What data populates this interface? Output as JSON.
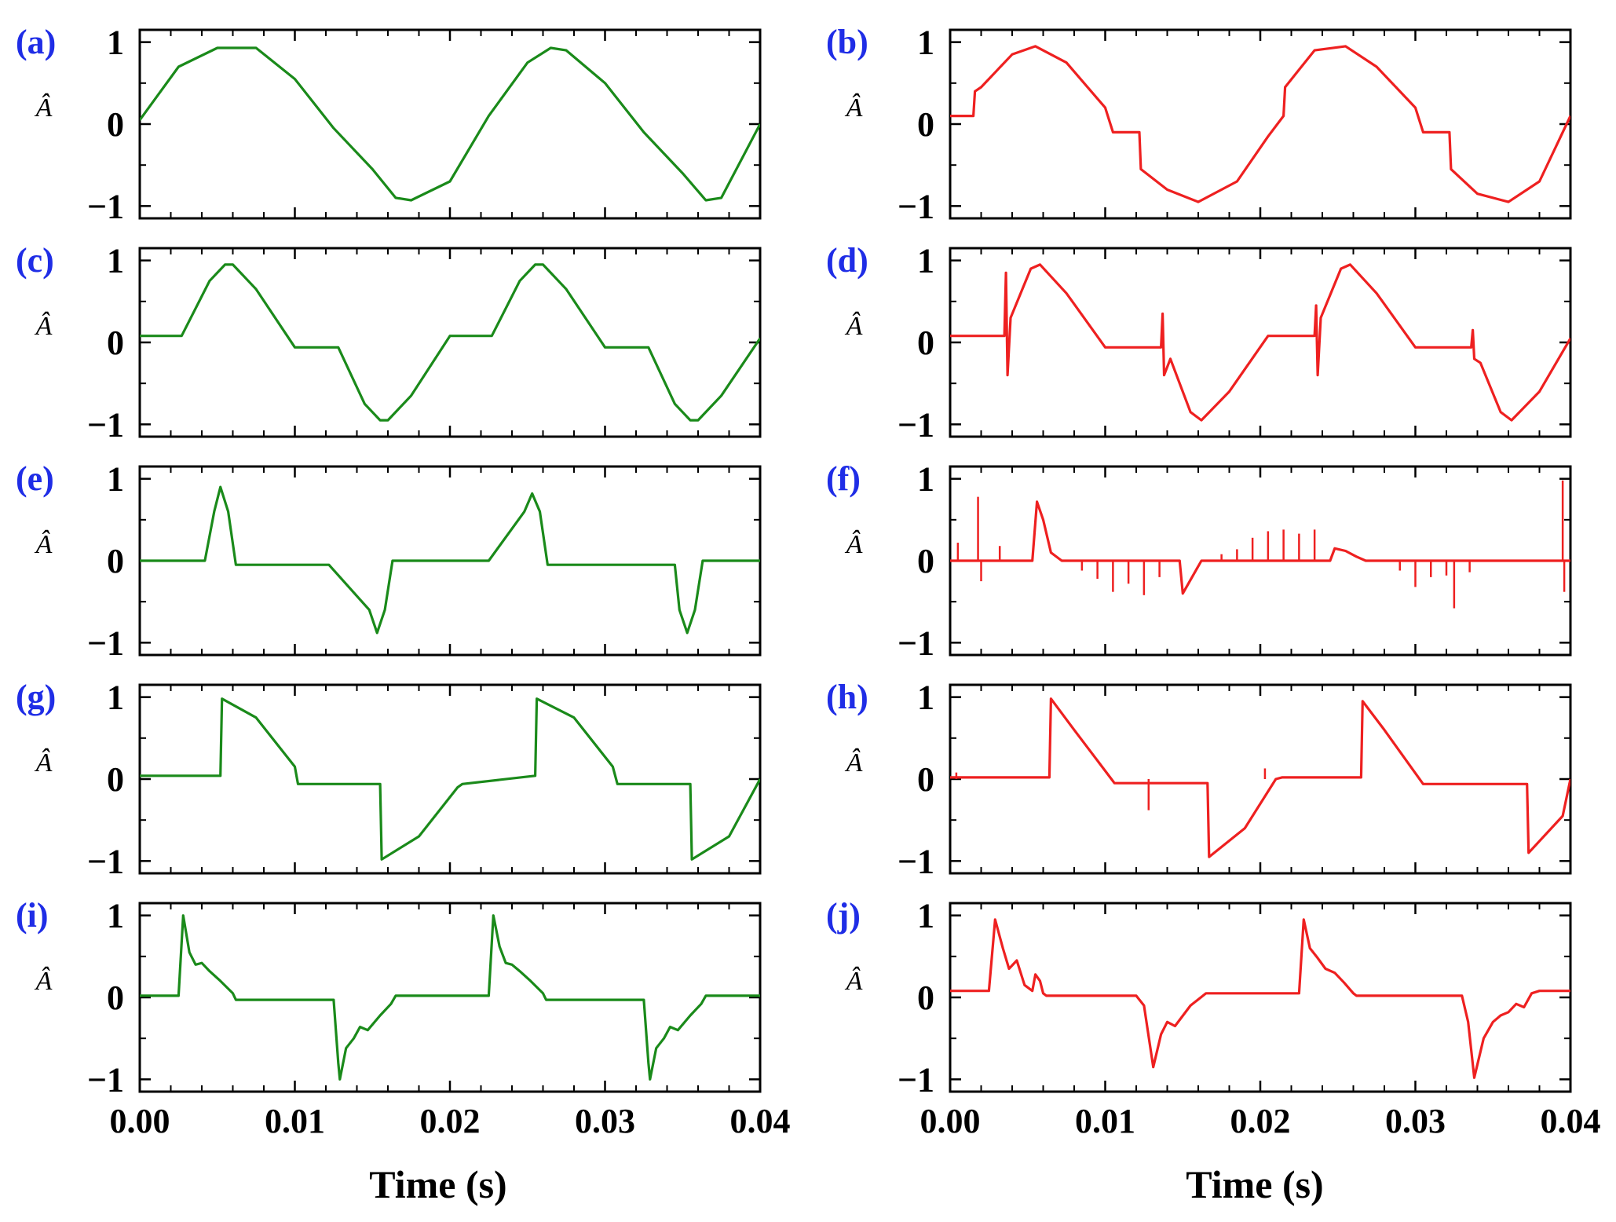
{
  "chart_data": {
    "type": "line",
    "layout": "5 rows x 2 columns of small multiples",
    "shared_xlabel": "Time (s)",
    "xlim": [
      0,
      0.04
    ],
    "x_ticks": [
      "0.00",
      "0.01",
      "0.02",
      "0.03",
      "0.04"
    ],
    "ylim": [
      -1.15,
      1.15
    ],
    "y_ticks": [
      "1",
      "0",
      "-1"
    ],
    "ylabel": "Â",
    "colors": {
      "left": "#1a8a1a",
      "right": "#ee2020",
      "panel_label": "#1f2de6"
    },
    "panels": [
      {
        "id": "a",
        "label": "(a)",
        "column": "left",
        "series": {
          "name": "(a)",
          "x": [
            0,
            0.0025,
            0.005,
            0.0075,
            0.01,
            0.0125,
            0.015,
            0.0165,
            0.0175,
            0.02,
            0.0225,
            0.025,
            0.0265,
            0.0275,
            0.03,
            0.0325,
            0.035,
            0.0365,
            0.0375,
            0.04
          ],
          "y": [
            0.05,
            0.7,
            0.93,
            0.93,
            0.55,
            -0.05,
            -0.55,
            -0.9,
            -0.93,
            -0.7,
            0.1,
            0.75,
            0.93,
            0.9,
            0.5,
            -0.1,
            -0.6,
            -0.93,
            -0.9,
            0
          ]
        }
      },
      {
        "id": "b",
        "label": "(b)",
        "column": "right",
        "series": {
          "name": "(b)",
          "x": [
            0,
            0.0015,
            0.0016,
            0.002,
            0.004,
            0.0055,
            0.0075,
            0.01,
            0.0105,
            0.0122,
            0.0123,
            0.014,
            0.016,
            0.0185,
            0.0205,
            0.0215,
            0.0216,
            0.0235,
            0.0255,
            0.0275,
            0.03,
            0.0305,
            0.0322,
            0.0323,
            0.034,
            0.036,
            0.038,
            0.04
          ],
          "y": [
            0.1,
            0.1,
            0.4,
            0.45,
            0.85,
            0.95,
            0.75,
            0.2,
            -0.1,
            -0.1,
            -0.55,
            -0.8,
            -0.95,
            -0.7,
            -0.15,
            0.1,
            0.45,
            0.9,
            0.95,
            0.7,
            0.2,
            -0.1,
            -0.1,
            -0.55,
            -0.85,
            -0.95,
            -0.7,
            0.1
          ]
        }
      },
      {
        "id": "c",
        "label": "(c)",
        "column": "left",
        "series": {
          "name": "(c)",
          "x": [
            0,
            0.0027,
            0.0045,
            0.0055,
            0.006,
            0.0075,
            0.01,
            0.0128,
            0.0145,
            0.0155,
            0.016,
            0.0175,
            0.02,
            0.0227,
            0.0245,
            0.0255,
            0.026,
            0.0275,
            0.03,
            0.0328,
            0.0345,
            0.0355,
            0.036,
            0.0375,
            0.04
          ],
          "y": [
            0.08,
            0.08,
            0.75,
            0.95,
            0.95,
            0.65,
            -0.06,
            -0.06,
            -0.75,
            -0.95,
            -0.95,
            -0.65,
            0.08,
            0.08,
            0.75,
            0.95,
            0.95,
            0.65,
            -0.06,
            -0.06,
            -0.75,
            -0.95,
            -0.95,
            -0.65,
            0.05
          ]
        }
      },
      {
        "id": "d",
        "label": "(d)",
        "column": "right",
        "series": {
          "name": "(d)",
          "x": [
            0,
            0.0035,
            0.0036,
            0.0037,
            0.0039,
            0.0052,
            0.0058,
            0.0075,
            0.01,
            0.0136,
            0.0137,
            0.0138,
            0.0142,
            0.0155,
            0.0162,
            0.018,
            0.0205,
            0.0235,
            0.0236,
            0.0237,
            0.0239,
            0.0252,
            0.0258,
            0.0275,
            0.03,
            0.0336,
            0.0337,
            0.0338,
            0.0342,
            0.0355,
            0.0362,
            0.038,
            0.04
          ],
          "y": [
            0.08,
            0.08,
            0.85,
            -0.4,
            0.3,
            0.9,
            0.95,
            0.6,
            -0.06,
            -0.06,
            0.35,
            -0.4,
            -0.2,
            -0.85,
            -0.95,
            -0.6,
            0.08,
            0.08,
            0.45,
            -0.4,
            0.3,
            0.9,
            0.95,
            0.6,
            -0.06,
            -0.06,
            0.15,
            -0.2,
            -0.25,
            -0.85,
            -0.95,
            -0.6,
            0.05
          ]
        }
      },
      {
        "id": "e",
        "label": "(e)",
        "column": "left",
        "series": {
          "name": "(e)",
          "x": [
            0,
            0.0042,
            0.0048,
            0.0052,
            0.0057,
            0.0062,
            0.0075,
            0.0122,
            0.0148,
            0.0153,
            0.0158,
            0.0163,
            0.0175,
            0.0225,
            0.0248,
            0.0253,
            0.0258,
            0.0263,
            0.0275,
            0.0345,
            0.0348,
            0.0353,
            0.0358,
            0.0363,
            0.0375,
            0.04
          ],
          "y": [
            0,
            0,
            0.6,
            0.9,
            0.6,
            -0.05,
            -0.05,
            -0.05,
            -0.6,
            -0.88,
            -0.6,
            0,
            0,
            0,
            0.6,
            0.82,
            0.6,
            -0.05,
            -0.05,
            -0.05,
            -0.6,
            -0.88,
            -0.6,
            0,
            0,
            0
          ]
        }
      },
      {
        "id": "f",
        "label": "(f)",
        "column": "right",
        "series": {
          "name": "(f)",
          "x": [
            0,
            0.0053,
            0.0056,
            0.006,
            0.0065,
            0.0072,
            0.0148,
            0.015,
            0.0162,
            0.0245,
            0.0248,
            0.0255,
            0.0262,
            0.0268,
            0.04
          ],
          "y": [
            0,
            0,
            0.72,
            0.5,
            0.1,
            0,
            0,
            -0.4,
            0,
            0,
            0.15,
            0.12,
            0.05,
            0,
            0
          ]
        },
        "spikes": [
          {
            "x": 0.0005,
            "y": 0.22
          },
          {
            "x": 0.0018,
            "y": 0.78
          },
          {
            "x": 0.002,
            "y": -0.25
          },
          {
            "x": 0.0032,
            "y": 0.18
          },
          {
            "x": 0.0085,
            "y": -0.12
          },
          {
            "x": 0.0095,
            "y": -0.22
          },
          {
            "x": 0.0105,
            "y": -0.38
          },
          {
            "x": 0.0115,
            "y": -0.28
          },
          {
            "x": 0.0125,
            "y": -0.42
          },
          {
            "x": 0.0135,
            "y": -0.2
          },
          {
            "x": 0.0175,
            "y": 0.08
          },
          {
            "x": 0.0185,
            "y": 0.14
          },
          {
            "x": 0.0195,
            "y": 0.28
          },
          {
            "x": 0.0205,
            "y": 0.36
          },
          {
            "x": 0.0215,
            "y": 0.38
          },
          {
            "x": 0.0225,
            "y": 0.33
          },
          {
            "x": 0.0235,
            "y": 0.38
          },
          {
            "x": 0.029,
            "y": -0.12
          },
          {
            "x": 0.03,
            "y": -0.32
          },
          {
            "x": 0.031,
            "y": -0.2
          },
          {
            "x": 0.032,
            "y": -0.18
          },
          {
            "x": 0.0325,
            "y": -0.58
          },
          {
            "x": 0.0335,
            "y": -0.14
          },
          {
            "x": 0.0395,
            "y": 0.98
          },
          {
            "x": 0.0396,
            "y": -0.38
          }
        ]
      },
      {
        "id": "g",
        "label": "(g)",
        "column": "left",
        "series": {
          "name": "(g)",
          "x": [
            0,
            0.0052,
            0.0053,
            0.0075,
            0.01,
            0.0102,
            0.0155,
            0.0156,
            0.018,
            0.0205,
            0.0208,
            0.0255,
            0.0256,
            0.028,
            0.0305,
            0.0308,
            0.0355,
            0.0356,
            0.038,
            0.04
          ],
          "y": [
            0.04,
            0.04,
            0.98,
            0.75,
            0.15,
            -0.06,
            -0.06,
            -0.98,
            -0.7,
            -0.1,
            -0.06,
            0.04,
            0.98,
            0.75,
            0.15,
            -0.06,
            -0.06,
            -0.98,
            -0.7,
            0
          ]
        }
      },
      {
        "id": "h",
        "label": "(h)",
        "column": "right",
        "series": {
          "name": "(h)",
          "x": [
            0,
            0.0064,
            0.0065,
            0.008,
            0.0104,
            0.0106,
            0.0148,
            0.0166,
            0.0167,
            0.019,
            0.021,
            0.0214,
            0.0265,
            0.0266,
            0.028,
            0.0305,
            0.0308,
            0.0372,
            0.0373,
            0.0395,
            0.04
          ],
          "y": [
            0.02,
            0.02,
            0.98,
            0.6,
            0,
            -0.05,
            -0.05,
            -0.05,
            -0.95,
            -0.6,
            0,
            0.02,
            0.02,
            0.95,
            0.6,
            -0.06,
            -0.06,
            -0.06,
            -0.9,
            -0.45,
            0
          ]
        },
        "spikes": [
          {
            "x": 0.0004,
            "y": 0.08
          },
          {
            "x": 0.0128,
            "y": -0.38
          },
          {
            "x": 0.0203,
            "y": 0.13
          }
        ]
      },
      {
        "id": "i",
        "label": "(i)",
        "column": "left",
        "series": {
          "name": "(i)",
          "x": [
            0,
            0.0025,
            0.0028,
            0.0032,
            0.0036,
            0.004,
            0.0045,
            0.0052,
            0.006,
            0.0062,
            0.01,
            0.0125,
            0.0128,
            0.0129,
            0.0133,
            0.0138,
            0.0142,
            0.0147,
            0.0155,
            0.0162,
            0.0165,
            0.02,
            0.0225,
            0.0228,
            0.0232,
            0.0236,
            0.024,
            0.0245,
            0.0252,
            0.026,
            0.0262,
            0.03,
            0.0325,
            0.0328,
            0.0329,
            0.0333,
            0.0338,
            0.0342,
            0.0347,
            0.0355,
            0.0362,
            0.0365,
            0.04
          ],
          "y": [
            0.02,
            0.02,
            1,
            0.55,
            0.4,
            0.42,
            0.32,
            0.2,
            0.05,
            -0.03,
            -0.03,
            -0.03,
            -0.8,
            -1,
            -0.62,
            -0.5,
            -0.36,
            -0.4,
            -0.22,
            -0.08,
            0.02,
            0.02,
            0.02,
            1,
            0.62,
            0.42,
            0.4,
            0.32,
            0.2,
            0.05,
            -0.03,
            -0.03,
            -0.03,
            -0.8,
            -1,
            -0.62,
            -0.5,
            -0.36,
            -0.4,
            -0.22,
            -0.08,
            0.02,
            0.02
          ]
        }
      },
      {
        "id": "j",
        "label": "(j)",
        "column": "right",
        "series": {
          "name": "(j)",
          "x": [
            0,
            0.0025,
            0.0029,
            0.0034,
            0.0038,
            0.0043,
            0.0048,
            0.0053,
            0.0055,
            0.0058,
            0.006,
            0.0062,
            0.012,
            0.0125,
            0.0131,
            0.0136,
            0.014,
            0.0145,
            0.0155,
            0.0165,
            0.0225,
            0.0228,
            0.0232,
            0.0237,
            0.0242,
            0.0248,
            0.0254,
            0.026,
            0.0262,
            0.033,
            0.0334,
            0.0338,
            0.0344,
            0.035,
            0.0355,
            0.036,
            0.0365,
            0.037,
            0.0375,
            0.038,
            0.04
          ],
          "y": [
            0.08,
            0.08,
            0.95,
            0.6,
            0.35,
            0.45,
            0.15,
            0.08,
            0.28,
            0.2,
            0.05,
            0.02,
            0.02,
            -0.1,
            -0.85,
            -0.45,
            -0.3,
            -0.35,
            -0.1,
            0.05,
            0.05,
            0.95,
            0.6,
            0.48,
            0.35,
            0.3,
            0.18,
            0.05,
            0.02,
            0.02,
            -0.3,
            -0.98,
            -0.5,
            -0.3,
            -0.22,
            -0.18,
            -0.08,
            -0.12,
            0.05,
            0.08,
            0.08
          ]
        }
      }
    ]
  }
}
